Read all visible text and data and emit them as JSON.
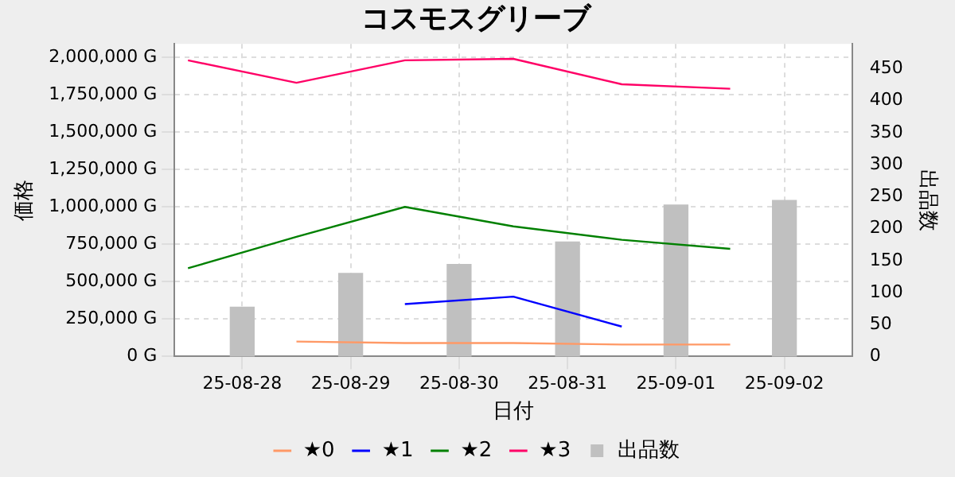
{
  "chart_data": {
    "type": "line",
    "title": "コスモスグリーブ",
    "xlabel": "日付",
    "ylabel": "価格",
    "y2label": "出品数",
    "xlim": [
      "--08-27T09:00",
      "--09-02T15:00"
    ],
    "xticks": [
      {
        "value": "--08-28",
        "label": "25-08-28"
      },
      {
        "value": "--08-29",
        "label": "25-08-29"
      },
      {
        "value": "--08-30",
        "label": "25-08-30"
      },
      {
        "value": "--08-31",
        "label": "25-08-31"
      },
      {
        "value": "--09-01",
        "label": "25-09-01"
      },
      {
        "value": "--09-02",
        "label": "25-09-02"
      }
    ],
    "ylim": [
      0,
      2090000
    ],
    "yticks": [
      {
        "value": 0,
        "label": "0 G"
      },
      {
        "value": 250000,
        "label": "250,000 G"
      },
      {
        "value": 500000,
        "label": "500,000 G"
      },
      {
        "value": 750000,
        "label": "750,000 G"
      },
      {
        "value": 1000000,
        "label": "1,000,000 G"
      },
      {
        "value": 1250000,
        "label": "1,250,000 G"
      },
      {
        "value": 1500000,
        "label": "1,500,000 G"
      },
      {
        "value": 1750000,
        "label": "1,750,000 G"
      },
      {
        "value": 2000000,
        "label": "2,000,000 G"
      }
    ],
    "y2lim": [
      0,
      489
    ],
    "y2ticks": [
      0,
      50,
      100,
      150,
      200,
      250,
      300,
      350,
      400,
      450
    ],
    "grid": true,
    "legend": "bottom",
    "marker": "none",
    "line_style": "solid",
    "series": [
      {
        "name": "★0",
        "color": "#ff9966",
        "x": [
          "--08-28T12:00",
          "--08-29T12:00",
          "--08-30T12:00",
          "--08-31T12:00",
          "--09-01T12:00"
        ],
        "values": [
          100000,
          90000,
          90000,
          80000,
          80000
        ]
      },
      {
        "name": "★1",
        "color": "#0000ff",
        "x": [
          "--08-29T12:00",
          "--08-30T12:00",
          "--08-31T12:00"
        ],
        "values": [
          350000,
          400000,
          200000
        ]
      },
      {
        "name": "★2",
        "color": "#008000",
        "x": [
          "--08-27T12:00",
          "--08-28T12:00",
          "--08-29T12:00",
          "--08-30T12:00",
          "--08-31T12:00",
          "--09-01T12:00"
        ],
        "values": [
          590000,
          800000,
          1000000,
          870000,
          780000,
          720000
        ]
      },
      {
        "name": "★3",
        "color": "#ff0066",
        "x": [
          "--08-27T12:00",
          "--08-28T12:00",
          "--08-29T12:00",
          "--08-30T12:00",
          "--08-31T12:00",
          "--09-01T12:00"
        ],
        "values": [
          1980000,
          1830000,
          1980000,
          1990000,
          1820000,
          1790000
        ]
      },
      {
        "name": "出品数",
        "type": "bar",
        "axis": "y2",
        "color": "#c0c0c0",
        "x": [
          "--08-28",
          "--08-29",
          "--08-30",
          "--08-31",
          "--09-01",
          "--09-02"
        ],
        "values": [
          77,
          130,
          144,
          179,
          237,
          244
        ]
      }
    ]
  }
}
